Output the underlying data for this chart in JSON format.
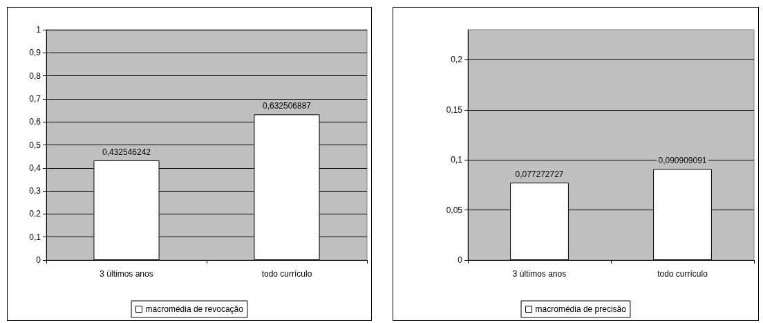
{
  "chart_data": [
    {
      "type": "bar",
      "categories": [
        "3 últimos anos",
        "todo currículo"
      ],
      "series": [
        {
          "name": "macromédia de revocação",
          "color": "#ffffff",
          "values": [
            0.432546242,
            0.632506887
          ],
          "value_labels": [
            "0,432546242",
            "0,632506887"
          ]
        }
      ],
      "ylim": [
        0,
        1
      ],
      "yticks": [
        {
          "value": 0,
          "label": "0"
        },
        {
          "value": 0.1,
          "label": "0,1"
        },
        {
          "value": 0.2,
          "label": "0,2"
        },
        {
          "value": 0.3,
          "label": "0,3"
        },
        {
          "value": 0.4,
          "label": "0,4"
        },
        {
          "value": 0.5,
          "label": "0,5"
        },
        {
          "value": 0.6,
          "label": "0,6"
        },
        {
          "value": 0.7,
          "label": "0,7"
        },
        {
          "value": 0.8,
          "label": "0,8"
        },
        {
          "value": 0.9,
          "label": "0,9"
        },
        {
          "value": 1,
          "label": "1"
        }
      ],
      "grid": "y",
      "legend": "bottom"
    },
    {
      "type": "bar",
      "categories": [
        "3 últimos anos",
        "todo currículo"
      ],
      "series": [
        {
          "name": "macromédia de precisão",
          "color": "#ffffff",
          "values": [
            0.077272727,
            0.090909091
          ],
          "value_labels": [
            "0,077272727",
            "0,090909091"
          ]
        }
      ],
      "ylim": [
        0,
        0.23
      ],
      "yticks": [
        {
          "value": 0,
          "label": "0"
        },
        {
          "value": 0.05,
          "label": "0,05"
        },
        {
          "value": 0.1,
          "label": "0,1"
        },
        {
          "value": 0.15,
          "label": "0,15"
        },
        {
          "value": 0.2,
          "label": "0,2"
        }
      ],
      "grid": "y",
      "legend": "bottom"
    }
  ]
}
